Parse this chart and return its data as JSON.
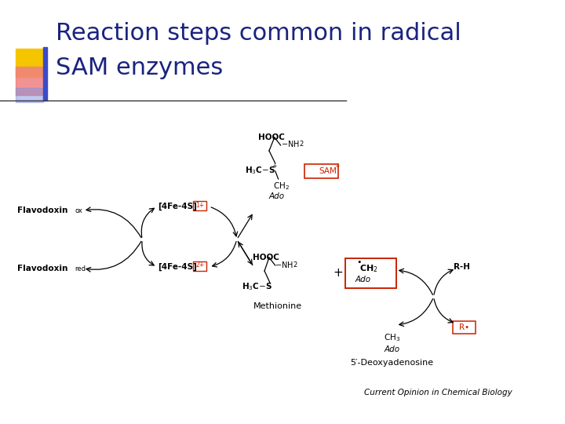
{
  "title_line1": "Reaction steps common in radical",
  "title_line2": "SAM enzymes",
  "title_color": "#1a237e",
  "title_fontsize": 22,
  "bg_color": "#ffffff",
  "accent_yellow": "#f5c500",
  "accent_red_pink": "#f08080",
  "accent_blue_rect": "#3b4bc8",
  "accent_blue_grad": "#8090e0",
  "divider_color": "#222222",
  "credit_text": "Current Opinion in Chemical Biology",
  "credit_fontsize": 7.5,
  "diagram": {
    "sam_box_color": "#cc2200",
    "fe4s_box_color": "#cc2200",
    "box_radical_color": "#cc2200"
  }
}
